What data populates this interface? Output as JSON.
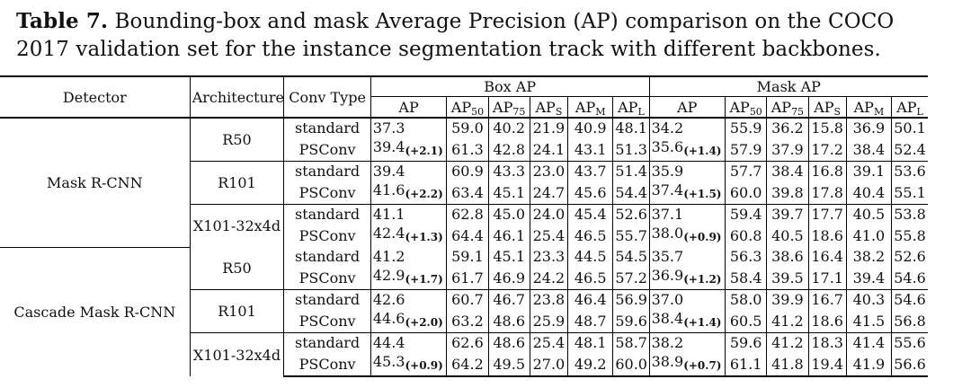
{
  "caption": {
    "label": "Table 7.",
    "text": "Bounding-box and mask Average Precision (AP) comparison on the COCO 2017 validation set for the instance segmentation track with different backbones."
  },
  "table": {
    "col_detector": "Detector",
    "col_architecture": "Architecture",
    "col_conv_type": "Conv Type",
    "group_box": "Box AP",
    "group_mask": "Mask AP",
    "sub_ap": "AP",
    "sub_ap50_base": "AP",
    "sub_ap50_sub": "50",
    "sub_ap75_base": "AP",
    "sub_ap75_sub": "75",
    "sub_aps_base": "AP",
    "sub_aps_sub": "S",
    "sub_apm_base": "AP",
    "sub_apm_sub": "M",
    "sub_apl_base": "AP",
    "sub_apl_sub": "L",
    "detectors": [
      {
        "name": "Mask R-CNN",
        "archs": [
          {
            "name": "R50",
            "rows": [
              {
                "type": "standard",
                "box": [
                  "37.3",
                  "",
                  "59.0",
                  "40.2",
                  "21.9",
                  "40.9",
                  "48.1"
                ],
                "mask": [
                  "34.2",
                  "",
                  "55.9",
                  "36.2",
                  "15.8",
                  "36.9",
                  "50.1"
                ]
              },
              {
                "type": "PSConv",
                "box": [
                  "39.4",
                  "(+2.1)",
                  "61.3",
                  "42.8",
                  "24.1",
                  "43.1",
                  "51.3"
                ],
                "mask": [
                  "35.6",
                  "(+1.4)",
                  "57.9",
                  "37.9",
                  "17.2",
                  "38.4",
                  "52.4"
                ]
              }
            ]
          },
          {
            "name": "R101",
            "rows": [
              {
                "type": "standard",
                "box": [
                  "39.4",
                  "",
                  "60.9",
                  "43.3",
                  "23.0",
                  "43.7",
                  "51.4"
                ],
                "mask": [
                  "35.9",
                  "",
                  "57.7",
                  "38.4",
                  "16.8",
                  "39.1",
                  "53.6"
                ]
              },
              {
                "type": "PSConv",
                "box": [
                  "41.6",
                  "(+2.2)",
                  "63.4",
                  "45.1",
                  "24.7",
                  "45.6",
                  "54.4"
                ],
                "mask": [
                  "37.4",
                  "(+1.5)",
                  "60.0",
                  "39.8",
                  "17.8",
                  "40.4",
                  "55.1"
                ]
              }
            ]
          },
          {
            "name": "X101-32x4d",
            "rows": [
              {
                "type": "standard",
                "box": [
                  "41.1",
                  "",
                  "62.8",
                  "45.0",
                  "24.0",
                  "45.4",
                  "52.6"
                ],
                "mask": [
                  "37.1",
                  "",
                  "59.4",
                  "39.7",
                  "17.7",
                  "40.5",
                  "53.8"
                ]
              },
              {
                "type": "PSConv",
                "box": [
                  "42.4",
                  "(+1.3)",
                  "64.4",
                  "46.1",
                  "25.4",
                  "46.5",
                  "55.7"
                ],
                "mask": [
                  "38.0",
                  "(+0.9)",
                  "60.8",
                  "40.5",
                  "18.6",
                  "41.0",
                  "55.8"
                ]
              }
            ]
          }
        ]
      },
      {
        "name": "Cascade Mask R-CNN",
        "archs": [
          {
            "name": "R50",
            "rows": [
              {
                "type": "standard",
                "box": [
                  "41.2",
                  "",
                  "59.1",
                  "45.1",
                  "23.3",
                  "44.5",
                  "54.5"
                ],
                "mask": [
                  "35.7",
                  "",
                  "56.3",
                  "38.6",
                  "16.4",
                  "38.2",
                  "52.6"
                ]
              },
              {
                "type": "PSConv",
                "box": [
                  "42.9",
                  "(+1.7)",
                  "61.7",
                  "46.9",
                  "24.2",
                  "46.5",
                  "57.2"
                ],
                "mask": [
                  "36.9",
                  "(+1.2)",
                  "58.4",
                  "39.5",
                  "17.1",
                  "39.4",
                  "54.6"
                ]
              }
            ]
          },
          {
            "name": "R101",
            "rows": [
              {
                "type": "standard",
                "box": [
                  "42.6",
                  "",
                  "60.7",
                  "46.7",
                  "23.8",
                  "46.4",
                  "56.9"
                ],
                "mask": [
                  "37.0",
                  "",
                  "58.0",
                  "39.9",
                  "16.7",
                  "40.3",
                  "54.6"
                ]
              },
              {
                "type": "PSConv",
                "box": [
                  "44.6",
                  "(+2.0)",
                  "63.2",
                  "48.6",
                  "25.9",
                  "48.7",
                  "59.6"
                ],
                "mask": [
                  "38.4",
                  "(+1.4)",
                  "60.5",
                  "41.2",
                  "18.6",
                  "41.5",
                  "56.8"
                ]
              }
            ]
          },
          {
            "name": "X101-32x4d",
            "rows": [
              {
                "type": "standard",
                "box": [
                  "44.4",
                  "",
                  "62.6",
                  "48.6",
                  "25.4",
                  "48.1",
                  "58.7"
                ],
                "mask": [
                  "38.2",
                  "",
                  "59.6",
                  "41.2",
                  "18.3",
                  "41.4",
                  "55.6"
                ]
              },
              {
                "type": "PSConv",
                "box": [
                  "45.3",
                  "(+0.9)",
                  "64.2",
                  "49.5",
                  "27.0",
                  "49.2",
                  "60.0"
                ],
                "mask": [
                  "38.9",
                  "(+0.7)",
                  "61.1",
                  "41.8",
                  "19.4",
                  "41.9",
                  "56.6"
                ]
              }
            ]
          }
        ]
      }
    ]
  }
}
